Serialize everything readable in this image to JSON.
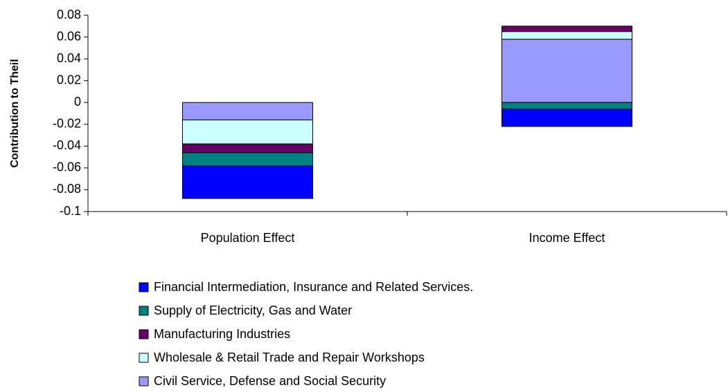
{
  "chart_data": {
    "type": "stacked-bar",
    "y_label": "Contribution to Theil",
    "categories": [
      "Population Effect",
      "Income Effect"
    ],
    "series": [
      {
        "name": "Civil Service, Defense and Social Security",
        "color": "#9999ff",
        "values": [
          -0.016,
          0.058
        ]
      },
      {
        "name": "Wholesale & Retail Trade and Repair Workshops",
        "color": "#ccffff",
        "values": [
          -0.022,
          0.007
        ]
      },
      {
        "name": "Manufacturing Industries",
        "color": "#660066",
        "values": [
          -0.008,
          0.005
        ]
      },
      {
        "name": "Supply of Electricity, Gas and Water",
        "color": "#008080",
        "values": [
          -0.012,
          -0.006
        ]
      },
      {
        "name": "Financial Intermediation, Insurance and Related Services.",
        "color": "#0000ff",
        "values": [
          -0.03,
          -0.016
        ]
      }
    ],
    "ylim": [
      -0.1,
      0.08
    ],
    "yticks": [
      -0.1,
      -0.08,
      -0.06,
      -0.04,
      -0.02,
      0,
      0.02,
      0.04,
      0.06,
      0.08
    ],
    "grid": false
  }
}
